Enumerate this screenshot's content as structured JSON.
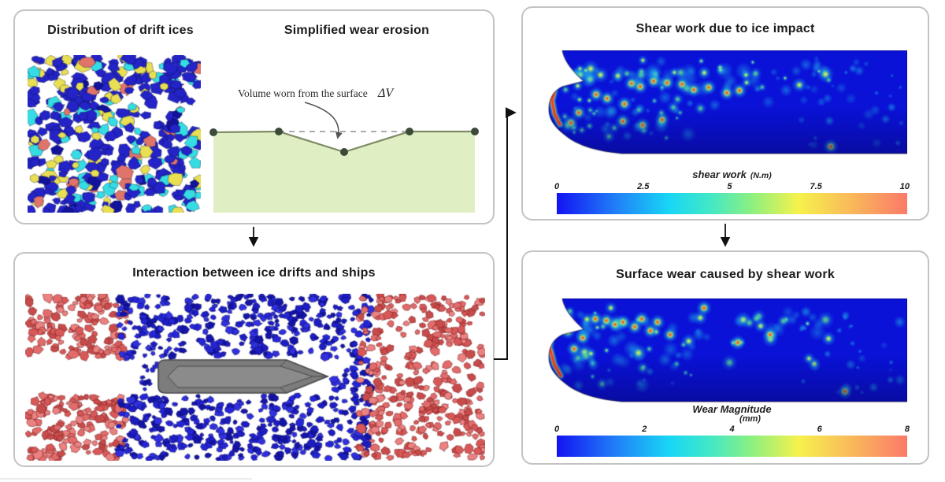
{
  "panels": {
    "drift_wear": {
      "title_distribution": "Distribution of drift ices",
      "title_erosion": "Simplified wear erosion",
      "erosion_annotation": "Volume worn from the surface",
      "erosion_symbol": "ΔV"
    },
    "interaction": {
      "title": "Interaction between ice drifts and ships"
    },
    "shear": {
      "title": "Shear work due to ice impact"
    },
    "surface_wear": {
      "title": "Surface wear caused by shear work"
    }
  },
  "chart_data": [
    {
      "type": "heatmap",
      "name": "shear-work-map",
      "title": "Shear work due to ice impact",
      "subject": "ship bow hull surface, hotspots concentrated near the bow",
      "colorbar": {
        "label": "shear work",
        "unit": "(N.m)",
        "ticks": [
          "0",
          "2.5",
          "5",
          "7.5",
          "10"
        ],
        "range": [
          0,
          10
        ],
        "orientation": "horizontal"
      }
    },
    {
      "type": "heatmap",
      "name": "surface-wear-map",
      "title": "Surface wear caused by shear work",
      "subject": "ship bow hull surface, wear pattern matching shear-work hotspots",
      "colorbar": {
        "label": "Wear Magnitude",
        "unit": "(mm)",
        "ticks": [
          "0",
          "2",
          "4",
          "6",
          "8"
        ],
        "range": [
          0,
          8
        ],
        "orientation": "horizontal"
      }
    }
  ],
  "colors": {
    "panel_border": "#c3c3c3",
    "title_text": "#1b1b1b",
    "hull_base_blue": "#0a12d8",
    "erosion_fill": "#e0eec3",
    "erosion_line": "#7d8c64",
    "erosion_dot": "#3e4a39",
    "ship_body": "#7c7c7c",
    "ship_deck": "#8b8b8b",
    "arrow": "#111111"
  },
  "visuals": {
    "colorbar_gradient": [
      [
        "#1313f2",
        0
      ],
      [
        "#2080f8",
        0.17
      ],
      [
        "#18d6f5",
        0.32
      ],
      [
        "#43e8c5",
        0.44
      ],
      [
        "#8ff07e",
        0.56
      ],
      [
        "#f6f24c",
        0.69
      ],
      [
        "#f9b95a",
        0.84
      ],
      [
        "#fa7a69",
        1
      ]
    ],
    "ice_field": {
      "seed": 42,
      "count": 400,
      "radius": [
        5,
        11
      ],
      "palette": [
        [
          "#2323c8",
          0.56
        ],
        [
          "#35dce4",
          0.18
        ],
        [
          "#e8df52",
          0.14
        ],
        [
          "#e0746a",
          0.06
        ],
        [
          "#12129a",
          0.06
        ]
      ]
    },
    "interaction_field": {
      "seed": 7,
      "red_palette": [
        "#e26b6b",
        "#d85858",
        "#ea8282",
        "#c74b4b"
      ],
      "blue_palette": [
        "#1d1dc4",
        "#2525d8",
        "#1414a8",
        "#3030e0"
      ],
      "red_top_left": {
        "x": [
          2,
          130
        ],
        "y": [
          2,
          80
        ],
        "count": 125,
        "radius": [
          3.5,
          7.5
        ]
      },
      "red_bottom_left": {
        "x": [
          2,
          130
        ],
        "y": [
          130,
          210
        ],
        "count": 150,
        "radius": [
          3.5,
          7.5
        ]
      },
      "blue_mid": {
        "x": [
          118,
          440
        ],
        "y": [
          2,
          210
        ],
        "count": 920,
        "radius": [
          3,
          6.5
        ]
      },
      "red_right": {
        "x": [
          424,
          582
        ],
        "y": [
          2,
          210
        ],
        "count": 345,
        "radius": [
          3.5,
          7
        ]
      },
      "stern_debris": {
        "x": [
          148,
          170
        ],
        "y": [
          86,
          122
        ],
        "count": 12,
        "radius": [
          2.5,
          4.5
        ]
      }
    },
    "hulls": {
      "shear": {
        "seed": 11,
        "minor": 160,
        "red_spots": [
          [
            107,
            42
          ],
          [
            118,
            46
          ],
          [
            135,
            39
          ],
          [
            152,
            41
          ],
          [
            171,
            43
          ],
          [
            186,
            50
          ],
          [
            205,
            47
          ],
          [
            228,
            54
          ],
          [
            244,
            51
          ],
          [
            62,
            56
          ],
          [
            76,
            61
          ],
          [
            98,
            68
          ],
          [
            40,
            79
          ],
          [
            30,
            92
          ],
          [
            96,
            90
          ],
          [
            121,
            95
          ],
          [
            146,
            88
          ],
          [
            360,
            122
          ]
        ],
        "bow_streak": [
          [
            10,
            48
          ],
          [
            6,
            64
          ],
          [
            9,
            80
          ],
          [
            16,
            94
          ]
        ]
      },
      "wear": {
        "seed": 23,
        "minor": 135,
        "red_spots": [
          [
            61,
            26
          ],
          [
            75,
            28
          ],
          [
            86,
            33
          ],
          [
            96,
            30
          ],
          [
            111,
            36
          ],
          [
            120,
            26
          ],
          [
            131,
            41
          ],
          [
            140,
            30
          ],
          [
            156,
            46
          ],
          [
            199,
            12
          ],
          [
            45,
            50
          ],
          [
            34,
            64
          ],
          [
            26,
            42
          ],
          [
            242,
            56
          ],
          [
            283,
            46
          ],
          [
            378,
            118
          ]
        ],
        "bow_streak": [
          [
            16,
            20
          ],
          [
            7,
            42
          ],
          [
            3,
            62
          ],
          [
            9,
            84
          ],
          [
            17,
            98
          ]
        ]
      }
    }
  }
}
